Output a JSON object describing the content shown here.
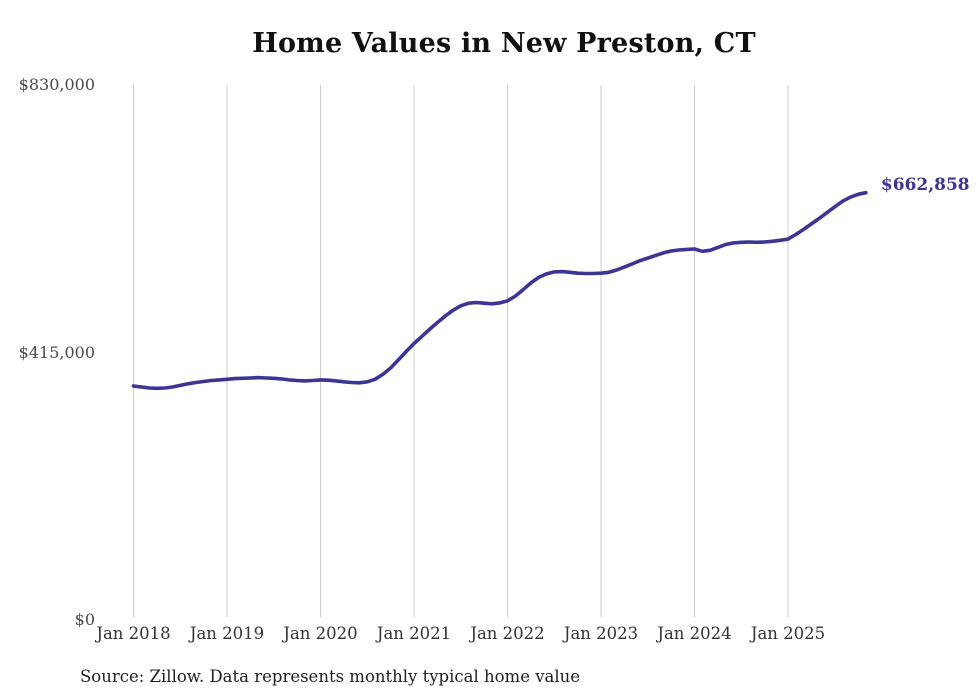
{
  "title": "Home Values in New Preston, CT",
  "source_note": "Source: Zillow. Data represents monthly typical home value",
  "chart_data": {
    "type": "line",
    "title": "Home Values in New Preston, CT",
    "xlabel": "",
    "ylabel": "",
    "ylim": [
      0,
      830000
    ],
    "grid": "vertical-only",
    "legend": "none",
    "line_color": "#3d3593",
    "grid_color": "#cccccc",
    "end_label": "$662,858",
    "latest_value": 662858,
    "y_ticks": [
      {
        "label": "$0",
        "value": 0
      },
      {
        "label": "$415,000",
        "value": 415000
      },
      {
        "label": "$830,000",
        "value": 830000
      }
    ],
    "x_tick_labels": [
      "Jan 2018",
      "Jan 2019",
      "Jan 2020",
      "Jan 2021",
      "Jan 2022",
      "Jan 2023",
      "Jan 2024",
      "Jan 2025"
    ],
    "series": [
      {
        "name": "Monthly typical home value",
        "x_start": "2018-01",
        "x_interval": "monthly",
        "x": [
          "2018-01",
          "2018-02",
          "2018-03",
          "2018-04",
          "2018-05",
          "2018-06",
          "2018-07",
          "2018-08",
          "2018-09",
          "2018-10",
          "2018-11",
          "2018-12",
          "2019-01",
          "2019-02",
          "2019-03",
          "2019-04",
          "2019-05",
          "2019-06",
          "2019-07",
          "2019-08",
          "2019-09",
          "2019-10",
          "2019-11",
          "2019-12",
          "2020-01",
          "2020-02",
          "2020-03",
          "2020-04",
          "2020-05",
          "2020-06",
          "2020-07",
          "2020-08",
          "2020-09",
          "2020-10",
          "2020-11",
          "2020-12",
          "2021-01",
          "2021-02",
          "2021-03",
          "2021-04",
          "2021-05",
          "2021-06",
          "2021-07",
          "2021-08",
          "2021-09",
          "2021-10",
          "2021-11",
          "2021-12",
          "2022-01",
          "2022-02",
          "2022-03",
          "2022-04",
          "2022-05",
          "2022-06",
          "2022-07",
          "2022-08",
          "2022-09",
          "2022-10",
          "2022-11",
          "2022-12",
          "2023-01",
          "2023-02",
          "2023-03",
          "2023-04",
          "2023-05",
          "2023-06",
          "2023-07",
          "2023-08",
          "2023-09",
          "2023-10",
          "2023-11",
          "2023-12",
          "2024-01",
          "2024-02",
          "2024-03",
          "2024-04",
          "2024-05",
          "2024-06",
          "2024-07",
          "2024-08",
          "2024-09",
          "2024-10",
          "2024-11",
          "2024-12",
          "2025-01",
          "2025-02",
          "2025-03",
          "2025-04",
          "2025-05",
          "2025-06",
          "2025-07",
          "2025-08",
          "2025-09",
          "2025-10",
          "2025-11"
        ],
        "values": [
          363000,
          361500,
          360000,
          359500,
          360000,
          361500,
          364000,
          366500,
          368500,
          370000,
          371500,
          372500,
          373500,
          374500,
          375000,
          375500,
          376000,
          375500,
          375000,
          374000,
          372500,
          371500,
          371000,
          371500,
          372500,
          372000,
          371000,
          369500,
          368500,
          368000,
          369500,
          373500,
          381000,
          391000,
          403500,
          416500,
          429000,
          440000,
          451000,
          461500,
          471500,
          480500,
          487500,
          491500,
          492500,
          491500,
          490500,
          492000,
          495000,
          502500,
          512500,
          523000,
          531500,
          537000,
          540000,
          540500,
          539500,
          538000,
          537500,
          537500,
          538000,
          539500,
          543000,
          547500,
          552500,
          557500,
          561500,
          565500,
          569500,
          572500,
          574000,
          575000,
          575500,
          572000,
          573500,
          578000,
          582500,
          585000,
          586000,
          586500,
          586000,
          586500,
          587500,
          589000,
          591000,
          598000,
          606000,
          614500,
          623000,
          632000,
          641000,
          649500,
          656000,
          660500,
          662858
        ]
      }
    ]
  }
}
